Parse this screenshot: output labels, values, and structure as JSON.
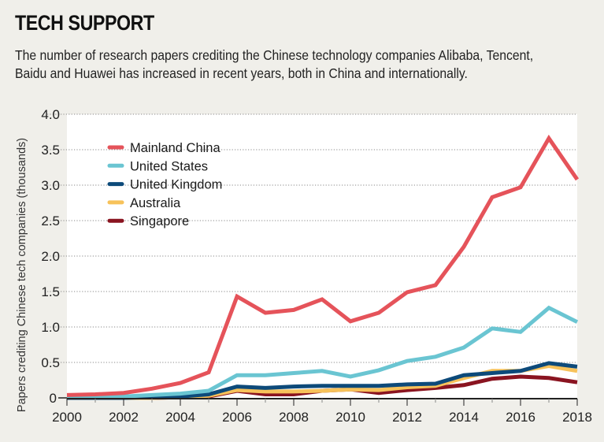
{
  "header": {
    "title": "TECH SUPPORT",
    "subtitle": "The number of research papers crediting the Chinese technology companies Alibaba, Tencent, Baidu and Huawei has increased in recent years, both in China and internationally."
  },
  "colors": {
    "background": "#f0efea",
    "plot_background": "#ffffff",
    "gridline": "#888888",
    "axis": "#222222"
  },
  "chart_data": {
    "type": "line",
    "title": "TECH SUPPORT",
    "subtitle": "The number of research papers crediting the Chinese technology companies Alibaba, Tencent, Baidu and Huawei has increased in recent years, both in China and internationally.",
    "xlabel": "",
    "ylabel": "Papers crediting Chinese tech companies (thousands)",
    "x": [
      2000,
      2001,
      2002,
      2003,
      2004,
      2005,
      2006,
      2007,
      2008,
      2009,
      2010,
      2011,
      2012,
      2013,
      2014,
      2015,
      2016,
      2017,
      2018
    ],
    "xlim": [
      2000,
      2018
    ],
    "ylim": [
      0,
      4.0
    ],
    "x_ticks": [
      2000,
      2002,
      2004,
      2006,
      2008,
      2010,
      2012,
      2014,
      2016,
      2018
    ],
    "x_tick_labels": [
      "2000",
      "2002",
      "2004",
      "2006",
      "2008",
      "2010",
      "2012",
      "2014",
      "2016",
      "2018"
    ],
    "y_ticks": [
      0,
      0.5,
      1.0,
      1.5,
      2.0,
      2.5,
      3.0,
      3.5,
      4.0
    ],
    "y_tick_labels": [
      "0",
      "0.5",
      "1.0",
      "1.5",
      "2.0",
      "2.5",
      "3.0",
      "3.5",
      "4.0"
    ],
    "grid": "horizontal dotted",
    "legend_position": "top-left",
    "series": [
      {
        "name": "Mainland China",
        "color": "#e5535a",
        "values": [
          0.04,
          0.05,
          0.07,
          0.13,
          0.21,
          0.36,
          1.43,
          1.2,
          1.24,
          1.39,
          1.08,
          1.2,
          1.49,
          1.59,
          2.13,
          2.83,
          2.97,
          3.66,
          3.08
        ]
      },
      {
        "name": "United States",
        "color": "#6ac5d2",
        "values": [
          0.01,
          0.01,
          0.02,
          0.04,
          0.06,
          0.1,
          0.32,
          0.32,
          0.35,
          0.38,
          0.3,
          0.39,
          0.52,
          0.58,
          0.71,
          0.98,
          0.93,
          1.27,
          1.07
        ]
      },
      {
        "name": "United Kingdom",
        "color": "#0d4a7a",
        "values": [
          0.0,
          0.0,
          0.0,
          0.01,
          0.02,
          0.05,
          0.16,
          0.14,
          0.16,
          0.17,
          0.17,
          0.17,
          0.19,
          0.2,
          0.32,
          0.35,
          0.38,
          0.49,
          0.44
        ]
      },
      {
        "name": "Australia",
        "color": "#f7c25a",
        "values": [
          0.0,
          0.0,
          0.0,
          0.0,
          0.01,
          0.03,
          0.11,
          0.09,
          0.09,
          0.1,
          0.12,
          0.11,
          0.15,
          0.17,
          0.28,
          0.38,
          0.38,
          0.45,
          0.38
        ]
      },
      {
        "name": "Singapore",
        "color": "#8a1420",
        "values": [
          0.0,
          0.0,
          0.0,
          0.0,
          0.01,
          0.02,
          0.1,
          0.05,
          0.05,
          0.1,
          0.12,
          0.07,
          0.11,
          0.14,
          0.18,
          0.27,
          0.3,
          0.28,
          0.22
        ]
      }
    ]
  }
}
